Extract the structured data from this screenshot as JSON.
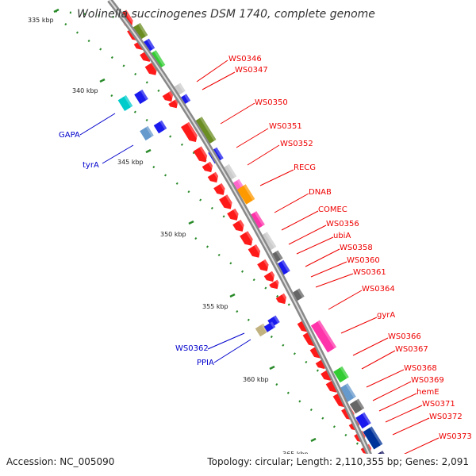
{
  "title": "Wolinella succinogenes DSM 1740, complete genome",
  "footer": {
    "accession": "Accession: NC_005090",
    "topology": "Topology: circular; Length: 2,110,355 bp; Genes: 2,091"
  },
  "colors": {
    "backbone": "#999999",
    "tick_dots": "#2a8a2a",
    "forward_label": "#ee0000",
    "reverse_label": "#0000cc"
  },
  "ticks": [
    "335 kbp",
    "340 kbp",
    "345 kbp",
    "350 kbp",
    "355 kbp",
    "360 kbp",
    "365 kbp"
  ],
  "forward_labels": [
    "WS0346",
    "WS0347",
    "WS0350",
    "WS0351",
    "WS0352",
    "RECG",
    "DNAB",
    "COMEC",
    "WS0356",
    "ubiA",
    "WS0358",
    "WS0360",
    "WS0361",
    "WS0364",
    "gyrA",
    "WS0366",
    "WS0367",
    "WS0368",
    "WS0369",
    "hemE",
    "WS0371",
    "WS0372",
    "WS0373"
  ],
  "reverse_labels": [
    "GAPA",
    "tyrA",
    "WS0362",
    "PPIA"
  ]
}
